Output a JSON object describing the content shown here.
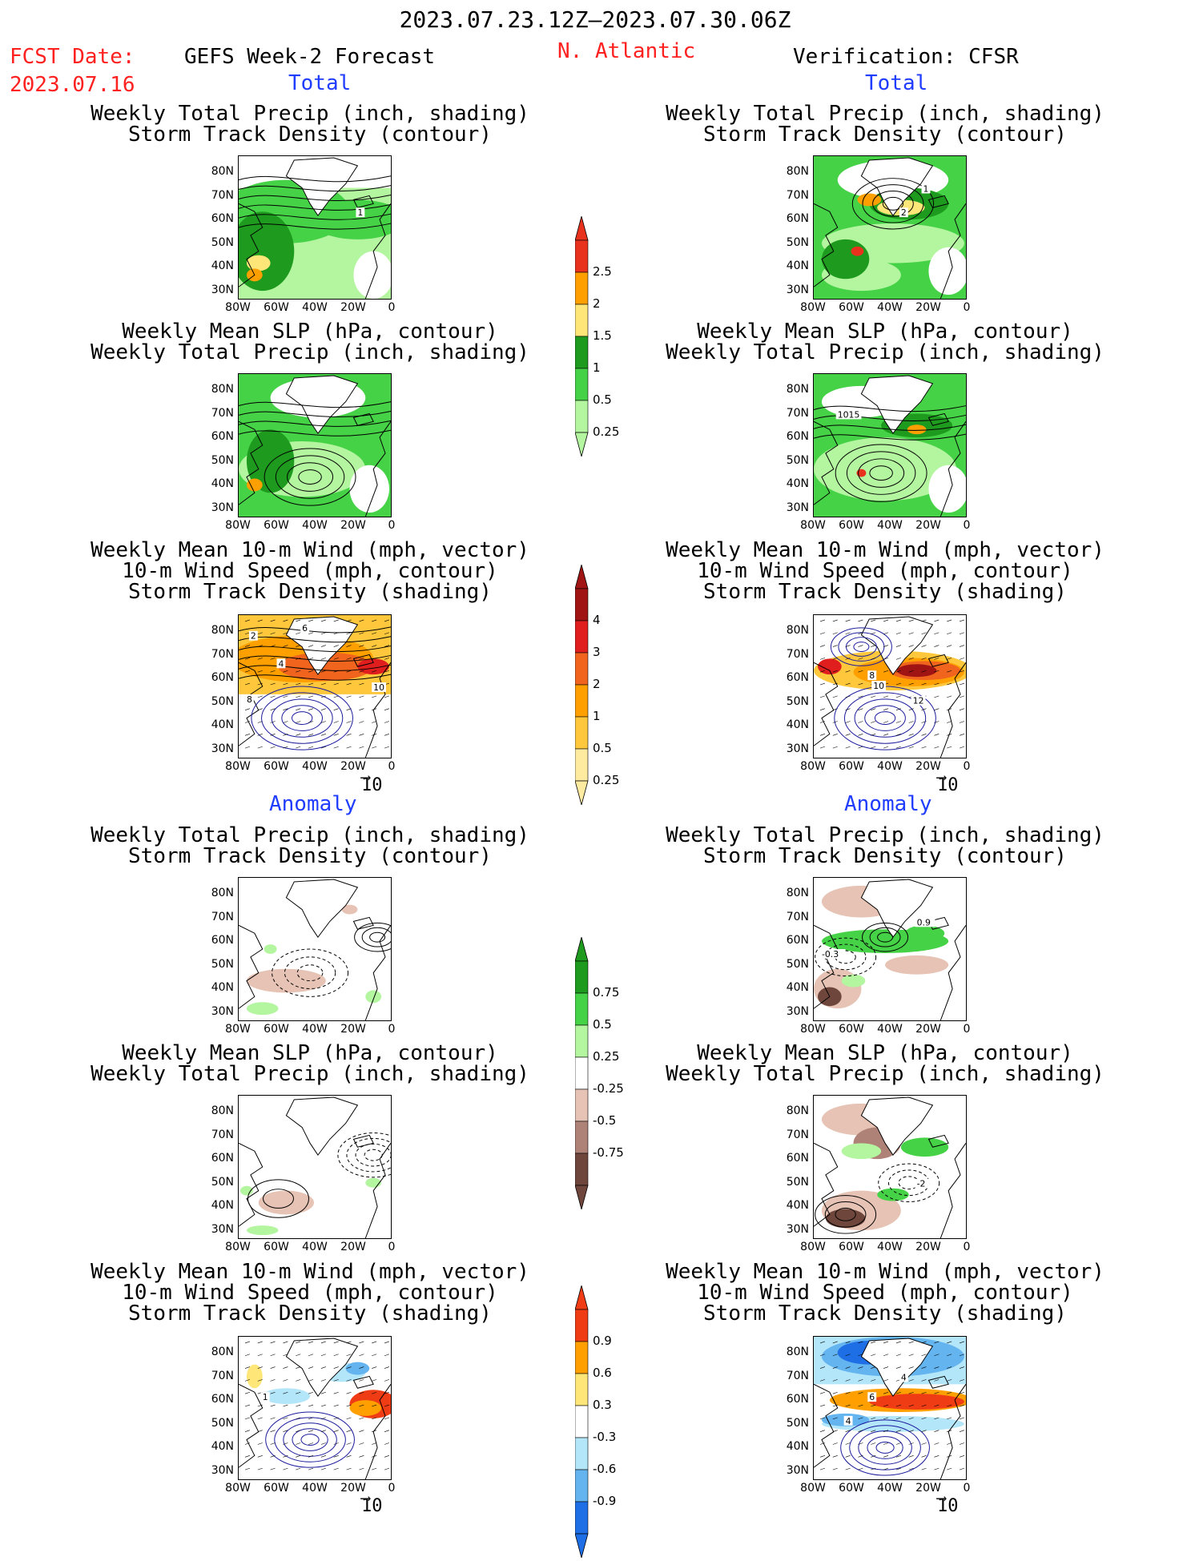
{
  "header": {
    "period": "2023.07.23.12Z—2023.07.30.06Z",
    "fcst_label": "FCST Date:",
    "fcst_date": "2023.07.16",
    "forecast_title": "GEFS Week-2 Forecast",
    "region": "N. Atlantic",
    "verification": "Verification: CFSR"
  },
  "sections": {
    "total": "Total",
    "anomaly": "Anomaly"
  },
  "titles": {
    "precip_track": [
      "Weekly Total Precip (inch, shading)",
      "Storm Track Density (contour)"
    ],
    "slp_precip": [
      "Weekly Mean SLP (hPa, contour)",
      "Weekly Total Precip (inch, shading)"
    ],
    "wind_track": [
      "Weekly Mean 10-m Wind (mph, vector)",
      "10-m Wind Speed (mph, contour)",
      "Storm Track Density (shading)"
    ]
  },
  "axes": {
    "lat_ticks": [
      "80N",
      "70N",
      "60N",
      "50N",
      "40N",
      "30N"
    ],
    "lon_ticks": [
      "80W",
      "60W",
      "40W",
      "20W",
      "0"
    ]
  },
  "vector_ref": "10",
  "contour_labels": {
    "fc_total_precip": [
      "1"
    ],
    "vf_total_precip": [
      "1",
      "2"
    ],
    "vf_total_slp": [
      "1015"
    ],
    "fc_total_wind": [
      "2",
      "6",
      "4",
      "8",
      "10"
    ],
    "vf_total_wind": [
      "8",
      "10",
      "12"
    ],
    "vf_anom_precip": [
      "0.9",
      "-0.3"
    ],
    "vf_anom_slp": [
      "-2"
    ],
    "fc_anom_wind": [
      "1"
    ],
    "vf_anom_wind": [
      "6",
      "4",
      "4"
    ]
  },
  "colorbars": {
    "total_precip": {
      "labels": [
        "2.5",
        "2",
        "1.5",
        "1",
        "0.5",
        "0.25"
      ],
      "colors": [
        "#e8321e",
        "#ffa000",
        "#ffe678",
        "#1e9b1e",
        "#46d246",
        "#b4f5a0"
      ]
    },
    "total_track": {
      "labels": [
        "4",
        "3",
        "2",
        "1",
        "0.5",
        "0.25"
      ],
      "colors": [
        "#a01414",
        "#e11e1e",
        "#f0641e",
        "#ffa000",
        "#ffc83c",
        "#ffeba0"
      ]
    },
    "anom_precip": {
      "labels": [
        "0.75",
        "0.5",
        "0.25",
        "-0.25",
        "-0.5",
        "-0.75"
      ],
      "colors": [
        "#1e9b1e",
        "#46d246",
        "#b4f5a0",
        "#ffffff",
        "#e6c3b4",
        "#af8278",
        "#6e463c"
      ]
    },
    "anom_track": {
      "labels": [
        "0.9",
        "0.6",
        "0.3",
        "-0.3",
        "-0.6",
        "-0.9"
      ],
      "colors": [
        "#f03c14",
        "#ffa000",
        "#ffe678",
        "#ffffff",
        "#b4e6fa",
        "#64b4f0",
        "#1e6ee6"
      ]
    }
  }
}
